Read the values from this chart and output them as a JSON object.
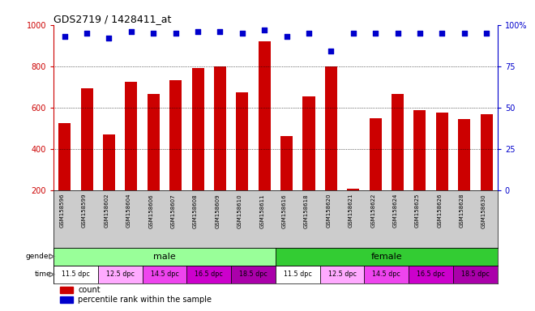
{
  "title": "GDS2719 / 1428411_at",
  "samples": [
    "GSM158596",
    "GSM158599",
    "GSM158602",
    "GSM158604",
    "GSM158606",
    "GSM158607",
    "GSM158608",
    "GSM158609",
    "GSM158610",
    "GSM158611",
    "GSM158616",
    "GSM158618",
    "GSM158620",
    "GSM158621",
    "GSM158622",
    "GSM158624",
    "GSM158625",
    "GSM158626",
    "GSM158628",
    "GSM158630"
  ],
  "counts": [
    525,
    695,
    470,
    725,
    665,
    735,
    790,
    800,
    675,
    920,
    465,
    655,
    800,
    210,
    550,
    665,
    590,
    575,
    545,
    570
  ],
  "percentile_ranks": [
    93,
    95,
    92,
    96,
    95,
    95,
    96,
    96,
    95,
    97,
    93,
    95,
    84,
    95,
    95,
    95,
    95,
    95,
    95,
    95
  ],
  "bar_color": "#cc0000",
  "dot_color": "#0000cc",
  "ylim_left": [
    200,
    1000
  ],
  "ylim_right": [
    0,
    100
  ],
  "yticks_left": [
    200,
    400,
    600,
    800,
    1000
  ],
  "yticks_right": [
    0,
    25,
    50,
    75,
    100
  ],
  "grid_lines": [
    400,
    600,
    800
  ],
  "gender_colors": [
    "#99ff99",
    "#33cc33"
  ],
  "time_labels": [
    "11.5 dpc",
    "12.5 dpc",
    "14.5 dpc",
    "16.5 dpc",
    "18.5 dpc"
  ],
  "time_colors": [
    "#ffffff",
    "#ffaaff",
    "#ee44ee",
    "#cc00cc",
    "#aa00aa"
  ],
  "bg_color": "#ffffff",
  "tick_label_bg": "#cccccc",
  "axis_color_left": "#cc0000",
  "axis_color_right": "#0000cc"
}
